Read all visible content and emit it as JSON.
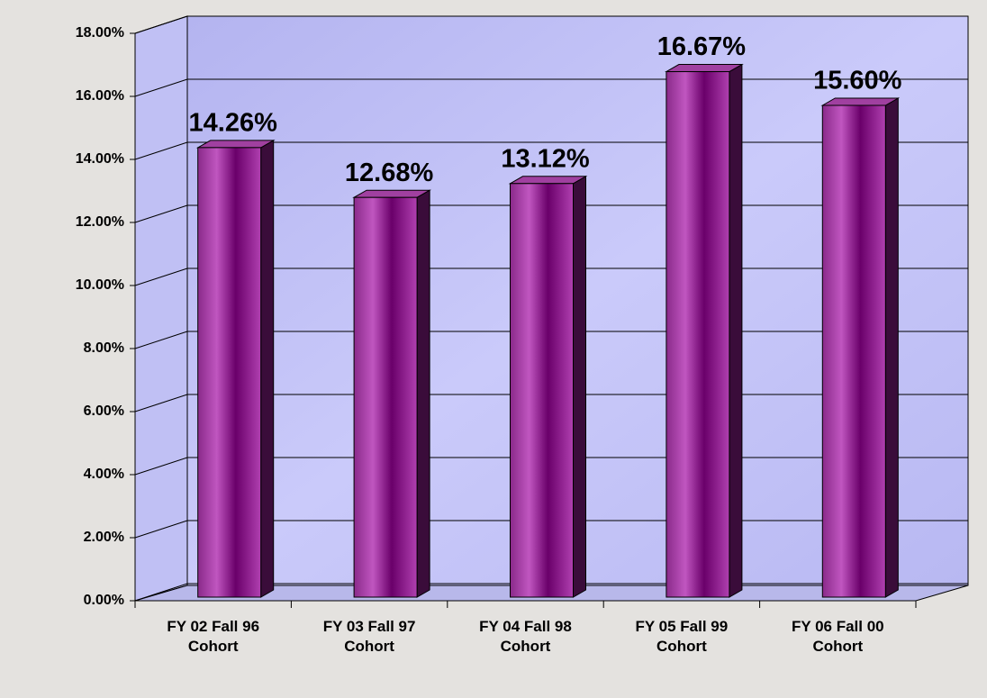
{
  "chart_data": {
    "type": "bar3d",
    "categories": [
      "FY 02 Fall 96 Cohort",
      "FY 03 Fall 97 Cohort",
      "FY 04 Fall 98 Cohort",
      "FY 05 Fall 99 Cohort",
      "FY 06 Fall 00 Cohort"
    ],
    "values": [
      14.26,
      12.68,
      13.12,
      16.67,
      15.6
    ],
    "value_labels": [
      "14.26%",
      "12.68%",
      "13.12%",
      "16.67%",
      "15.60%"
    ],
    "color": "#8b1f8b",
    "ylim": [
      0,
      18
    ],
    "yticks": [
      {
        "value": 0,
        "label": "0.00%"
      },
      {
        "value": 2,
        "label": "2.00%"
      },
      {
        "value": 4,
        "label": "4.00%"
      },
      {
        "value": 6,
        "label": "6.00%"
      },
      {
        "value": 8,
        "label": "8.00%"
      },
      {
        "value": 10,
        "label": "10.00%"
      },
      {
        "value": 12,
        "label": "12.00%"
      },
      {
        "value": 14,
        "label": "14.00%"
      },
      {
        "value": 16,
        "label": "16.00%"
      },
      {
        "value": 18,
        "label": "18.00%"
      }
    ],
    "grid": true
  }
}
